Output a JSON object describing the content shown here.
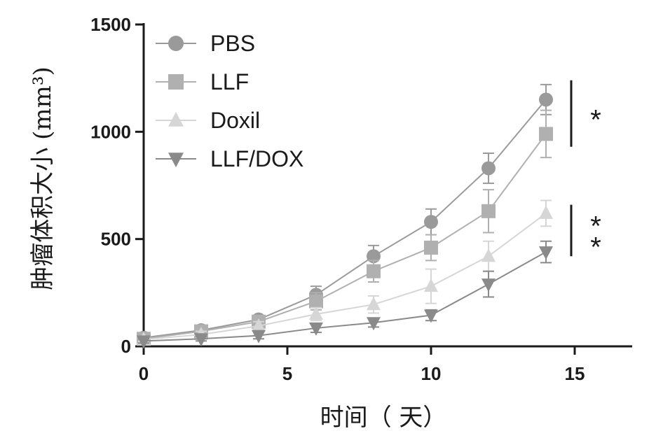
{
  "chart_data": {
    "type": "line",
    "xlabel": "时间（ 天）",
    "ylabel": "肿瘤体积大小 (mm³)",
    "xlim": [
      0,
      17
    ],
    "ylim": [
      0,
      1500
    ],
    "x_ticks": [
      "0",
      "5",
      "10",
      "15"
    ],
    "y_ticks": [
      "0",
      "500",
      "1000",
      "1500"
    ],
    "legend_position": "top-left",
    "series": [
      {
        "name": "PBS",
        "marker": "circle",
        "color": "#9a9a9a",
        "x": [
          0,
          2,
          4,
          6,
          8,
          10,
          12,
          14
        ],
        "y": [
          40,
          75,
          125,
          240,
          420,
          580,
          830,
          1150
        ],
        "err": [
          15,
          15,
          20,
          40,
          50,
          60,
          70,
          70
        ]
      },
      {
        "name": "LLF",
        "marker": "square",
        "color": "#b0b0b0",
        "x": [
          0,
          2,
          4,
          6,
          8,
          10,
          12,
          14
        ],
        "y": [
          35,
          70,
          115,
          210,
          350,
          460,
          630,
          990
        ],
        "err": [
          15,
          15,
          20,
          40,
          50,
          60,
          100,
          110
        ]
      },
      {
        "name": "Doxil",
        "marker": "triangle-up",
        "color": "#d6d6d6",
        "x": [
          0,
          2,
          4,
          6,
          8,
          10,
          12,
          14
        ],
        "y": [
          32,
          55,
          95,
          150,
          195,
          280,
          420,
          620
        ],
        "err": [
          10,
          15,
          20,
          30,
          40,
          80,
          70,
          60
        ]
      },
      {
        "name": "LLF/DOX",
        "marker": "triangle-down",
        "color": "#8a8a8a",
        "x": [
          0,
          2,
          4,
          6,
          8,
          10,
          12,
          14
        ],
        "y": [
          25,
          35,
          50,
          85,
          110,
          145,
          290,
          440
        ],
        "err": [
          10,
          10,
          15,
          20,
          20,
          25,
          60,
          50
        ]
      }
    ],
    "annotations": [
      {
        "text": "*",
        "y_range": [
          930,
          1240
        ]
      },
      {
        "text": "**",
        "y_range": [
          420,
          660
        ]
      }
    ]
  }
}
